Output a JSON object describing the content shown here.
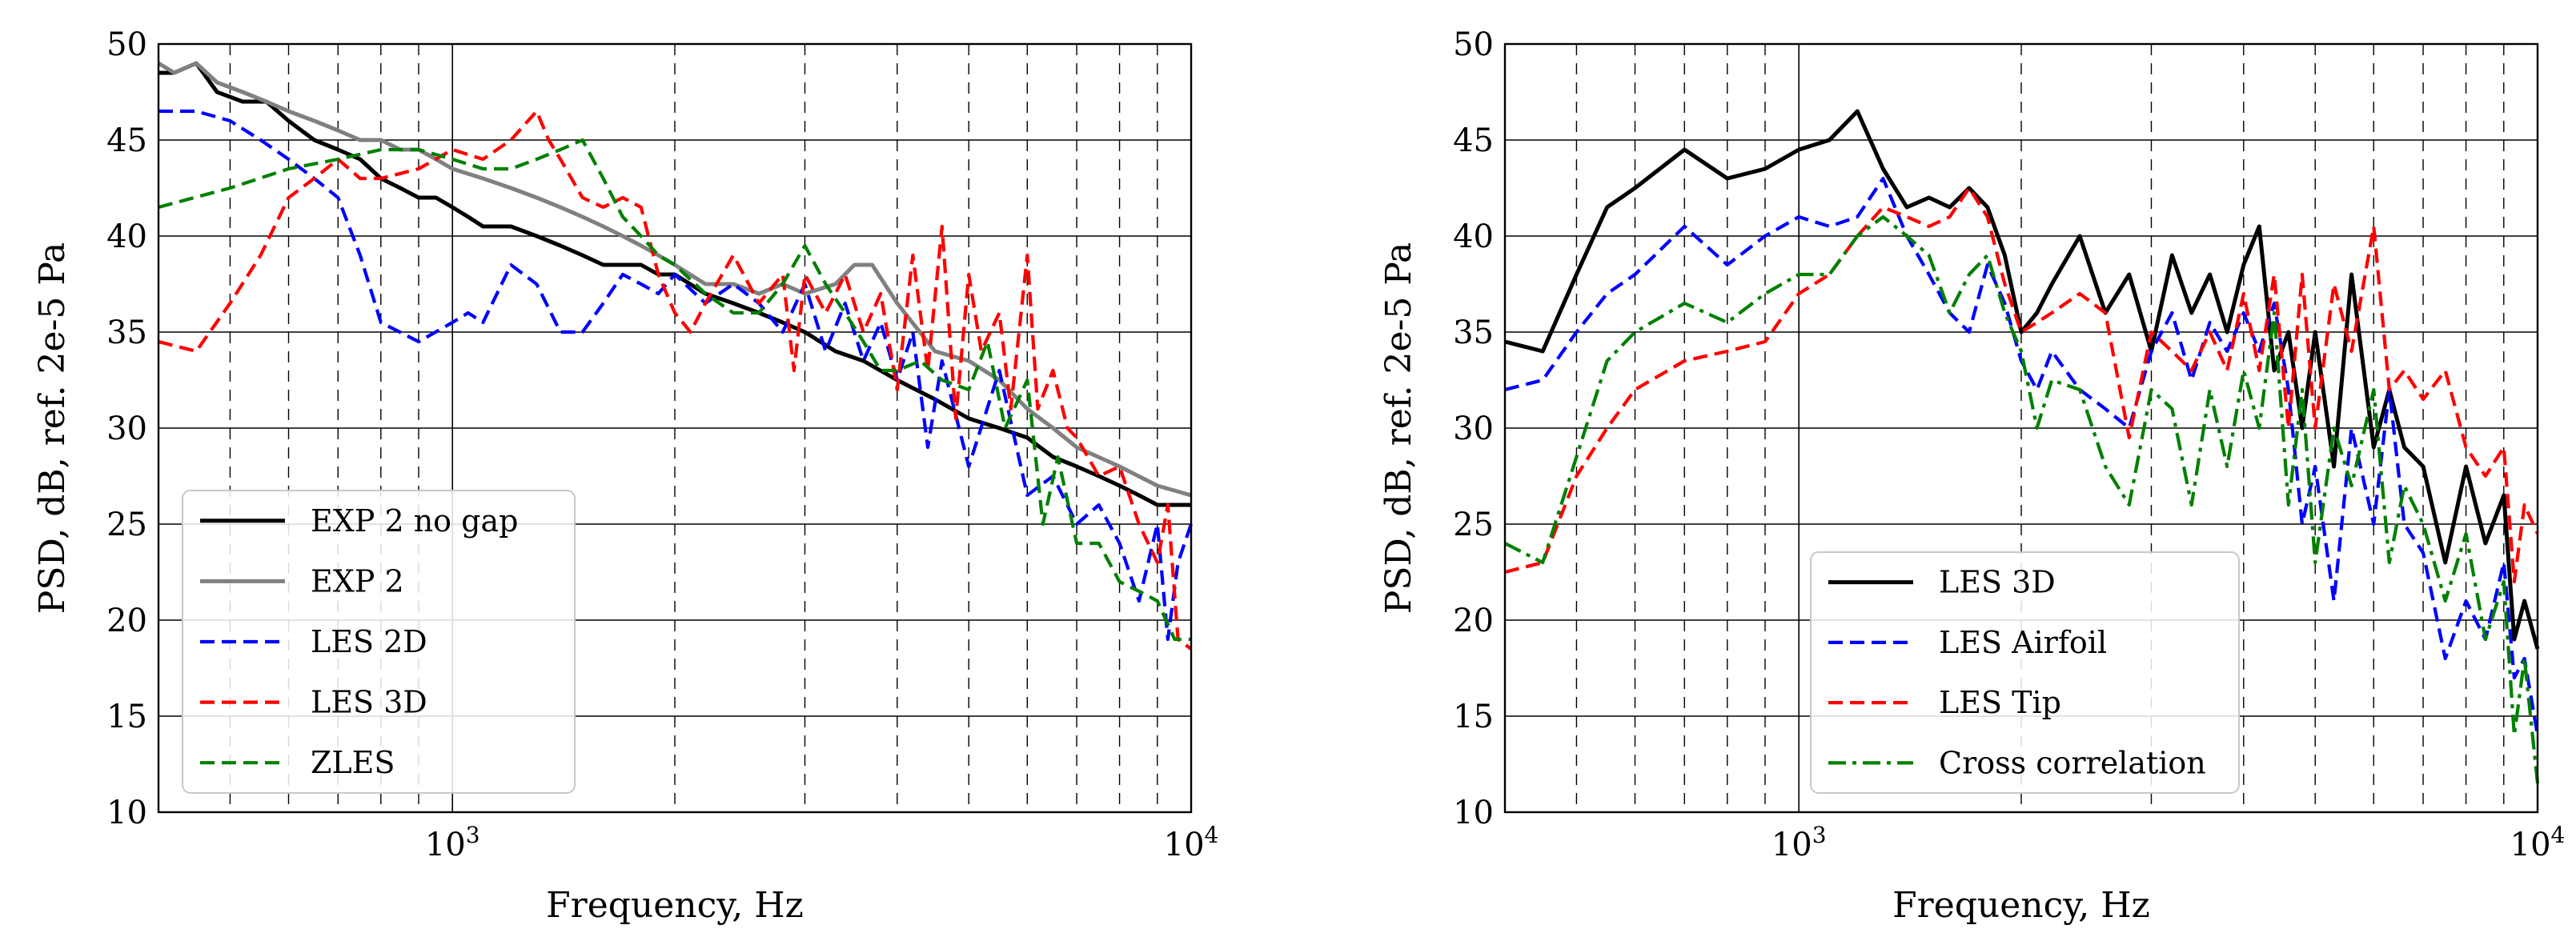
{
  "chart_data": [
    {
      "type": "line",
      "xlabel": "Frequency, Hz",
      "ylabel": "PSD, dB, ref. 2e-5 Pa",
      "xscale": "log",
      "xlim": [
        400,
        10000
      ],
      "ylim": [
        10,
        50
      ],
      "yticks": [
        10,
        15,
        20,
        25,
        30,
        35,
        40,
        45,
        50
      ],
      "xtick_labels": [
        {
          "value": 1000,
          "base": "10",
          "exp": "3"
        },
        {
          "value": 10000,
          "base": "10",
          "exp": "4"
        }
      ],
      "grid": true,
      "legend_position": "lower-left",
      "series": [
        {
          "name": "EXP 2 no gap",
          "color": "#000000",
          "style": "solid",
          "x": [
            400,
            420,
            450,
            480,
            520,
            560,
            600,
            650,
            700,
            750,
            800,
            850,
            900,
            950,
            1000,
            1050,
            1100,
            1200,
            1300,
            1400,
            1500,
            1600,
            1700,
            1800,
            1900,
            2000,
            2200,
            2400,
            2600,
            2800,
            3000,
            3300,
            3600,
            4000,
            4500,
            5000,
            5500,
            6000,
            6500,
            7000,
            7500,
            8000,
            8500,
            9000,
            9500,
            10000
          ],
          "y": [
            48.5,
            48.5,
            49.0,
            47.5,
            47.0,
            47.0,
            46.0,
            45.0,
            44.5,
            44.0,
            43.0,
            42.5,
            42.0,
            42.0,
            41.5,
            41.0,
            40.5,
            40.5,
            40.0,
            39.5,
            39.0,
            38.5,
            38.5,
            38.5,
            38.0,
            38.0,
            37.0,
            36.5,
            36.0,
            35.5,
            35.0,
            34.0,
            33.5,
            32.5,
            31.5,
            30.5,
            30.0,
            29.5,
            28.5,
            28.0,
            27.5,
            27.0,
            26.5,
            26.0,
            26.0,
            26.0
          ]
        },
        {
          "name": "EXP 2",
          "color": "#808080",
          "style": "solid",
          "x": [
            400,
            420,
            450,
            480,
            520,
            560,
            600,
            650,
            700,
            750,
            800,
            850,
            900,
            950,
            1000,
            1100,
            1200,
            1300,
            1400,
            1500,
            1600,
            1700,
            1800,
            1900,
            2000,
            2200,
            2400,
            2600,
            2800,
            3000,
            3300,
            3500,
            3700,
            4000,
            4500,
            5000,
            5500,
            6000,
            6500,
            7000,
            8000,
            9000,
            10000
          ],
          "y": [
            49.0,
            48.5,
            49.0,
            48.0,
            47.5,
            47.0,
            46.5,
            46.0,
            45.5,
            45.0,
            45.0,
            44.5,
            44.5,
            44.0,
            43.5,
            43.0,
            42.5,
            42.0,
            41.5,
            41.0,
            40.5,
            40.0,
            39.5,
            39.0,
            38.5,
            37.5,
            37.5,
            37.0,
            37.5,
            37.0,
            37.5,
            38.5,
            38.5,
            36.5,
            34.0,
            33.5,
            32.5,
            31.0,
            30.0,
            29.0,
            28.0,
            27.0,
            26.5
          ]
        },
        {
          "name": "LES 2D",
          "color": "#0000ff",
          "style": "dashed",
          "x": [
            400,
            450,
            500,
            550,
            600,
            650,
            700,
            750,
            800,
            900,
            1000,
            1050,
            1100,
            1200,
            1300,
            1400,
            1500,
            1600,
            1700,
            1800,
            1900,
            2000,
            2200,
            2400,
            2600,
            2800,
            3000,
            3200,
            3400,
            3600,
            3800,
            4000,
            4200,
            4400,
            4600,
            5000,
            5500,
            6000,
            6500,
            7000,
            7500,
            8000,
            8500,
            9000,
            9300,
            9600,
            10000
          ],
          "y": [
            46.5,
            46.5,
            46.0,
            45.0,
            44.0,
            43.0,
            42.0,
            39.0,
            35.5,
            34.5,
            35.5,
            36.0,
            35.5,
            38.5,
            37.5,
            35.0,
            35.0,
            36.5,
            38.0,
            37.5,
            37.0,
            38.0,
            36.5,
            37.5,
            36.5,
            35.0,
            37.5,
            34.0,
            36.5,
            33.5,
            35.5,
            32.5,
            35.0,
            29.0,
            33.5,
            28.0,
            33.0,
            26.5,
            27.5,
            25.0,
            26.0,
            24.0,
            21.0,
            25.0,
            19.0,
            23.0,
            25.0
          ]
        },
        {
          "name": "LES 3D",
          "color": "#ff0000",
          "style": "dashed",
          "x": [
            400,
            450,
            500,
            550,
            600,
            650,
            700,
            750,
            800,
            900,
            1000,
            1100,
            1200,
            1300,
            1350,
            1400,
            1500,
            1600,
            1700,
            1800,
            1900,
            2000,
            2100,
            2200,
            2400,
            2600,
            2800,
            2900,
            3000,
            3200,
            3400,
            3600,
            3800,
            4000,
            4200,
            4400,
            4600,
            4800,
            5000,
            5200,
            5500,
            5700,
            6000,
            6200,
            6500,
            6800,
            7000,
            7500,
            8000,
            8500,
            9000,
            9300,
            9600,
            10000
          ],
          "y": [
            34.5,
            34.0,
            36.5,
            39.0,
            42.0,
            43.0,
            44.0,
            43.0,
            43.0,
            43.5,
            44.5,
            44.0,
            45.0,
            46.5,
            45.0,
            44.0,
            42.0,
            41.5,
            42.0,
            41.5,
            38.0,
            36.0,
            35.0,
            36.5,
            39.0,
            36.5,
            38.0,
            33.0,
            38.0,
            36.0,
            38.0,
            35.0,
            37.0,
            32.0,
            39.0,
            33.0,
            40.5,
            30.5,
            38.0,
            34.0,
            36.0,
            31.0,
            39.0,
            31.0,
            33.0,
            30.0,
            29.5,
            27.5,
            28.0,
            25.0,
            23.0,
            26.0,
            19.0,
            18.5
          ]
        },
        {
          "name": "ZLES",
          "color": "#008000",
          "style": "dashed",
          "x": [
            400,
            500,
            600,
            700,
            800,
            900,
            1000,
            1100,
            1200,
            1300,
            1400,
            1500,
            1600,
            1700,
            1800,
            1900,
            2000,
            2200,
            2400,
            2600,
            2800,
            3000,
            3200,
            3400,
            3600,
            3800,
            4000,
            4300,
            4600,
            5000,
            5300,
            5600,
            6000,
            6300,
            6600,
            7000,
            7500,
            8000,
            8500,
            9000,
            9500,
            10000
          ],
          "y": [
            41.5,
            42.5,
            43.5,
            44.0,
            44.5,
            44.5,
            44.0,
            43.5,
            43.5,
            44.0,
            44.5,
            45.0,
            43.0,
            41.0,
            40.0,
            39.0,
            38.5,
            37.0,
            36.0,
            36.0,
            37.5,
            39.5,
            37.5,
            36.0,
            34.5,
            33.0,
            33.0,
            33.5,
            32.5,
            32.0,
            34.5,
            30.0,
            32.5,
            25.0,
            28.5,
            24.0,
            24.0,
            22.0,
            21.5,
            21.0,
            19.0,
            19.0
          ]
        }
      ]
    },
    {
      "type": "line",
      "xlabel": "Frequency, Hz",
      "ylabel": "PSD, dB, ref. 2e-5 Pa",
      "xscale": "log",
      "xlim": [
        400,
        10000
      ],
      "ylim": [
        10,
        50
      ],
      "yticks": [
        10,
        15,
        20,
        25,
        30,
        35,
        40,
        45,
        50
      ],
      "xtick_labels": [
        {
          "value": 1000,
          "base": "10",
          "exp": "3"
        },
        {
          "value": 10000,
          "base": "10",
          "exp": "4"
        }
      ],
      "grid": true,
      "legend_position": "lower-right",
      "series": [
        {
          "name": "LES 3D",
          "color": "#000000",
          "style": "solid",
          "x": [
            400,
            450,
            500,
            550,
            600,
            700,
            800,
            900,
            1000,
            1100,
            1200,
            1300,
            1400,
            1500,
            1600,
            1700,
            1800,
            1900,
            2000,
            2100,
            2200,
            2400,
            2600,
            2800,
            3000,
            3200,
            3400,
            3600,
            3800,
            4000,
            4200,
            4400,
            4600,
            4800,
            5000,
            5300,
            5600,
            6000,
            6300,
            6600,
            7000,
            7500,
            8000,
            8500,
            9000,
            9300,
            9600,
            10000
          ],
          "y": [
            34.5,
            34.0,
            38.0,
            41.5,
            42.5,
            44.5,
            43.0,
            43.5,
            44.5,
            45.0,
            46.5,
            43.5,
            41.5,
            42.0,
            41.5,
            42.5,
            41.5,
            39.0,
            35.0,
            36.0,
            37.5,
            40.0,
            36.0,
            38.0,
            34.0,
            39.0,
            36.0,
            38.0,
            35.0,
            38.5,
            40.5,
            33.0,
            35.0,
            30.0,
            35.0,
            28.0,
            38.0,
            29.0,
            32.0,
            29.0,
            28.0,
            23.0,
            28.0,
            24.0,
            26.5,
            19.0,
            21.0,
            18.5
          ]
        },
        {
          "name": "LES Airfoil",
          "color": "#0000ff",
          "style": "dashed",
          "x": [
            400,
            450,
            500,
            550,
            600,
            700,
            800,
            900,
            1000,
            1100,
            1200,
            1300,
            1400,
            1500,
            1600,
            1700,
            1800,
            1900,
            2000,
            2100,
            2200,
            2400,
            2600,
            2800,
            3000,
            3200,
            3400,
            3600,
            3800,
            4000,
            4200,
            4400,
            4600,
            4800,
            5000,
            5300,
            5600,
            6000,
            6300,
            6600,
            7000,
            7500,
            8000,
            8500,
            9000,
            9300,
            9600,
            10000
          ],
          "y": [
            32.0,
            32.5,
            35.0,
            37.0,
            38.0,
            40.5,
            38.5,
            40.0,
            41.0,
            40.5,
            41.0,
            43.0,
            40.0,
            38.0,
            36.0,
            35.0,
            38.5,
            36.5,
            33.5,
            32.0,
            34.0,
            32.0,
            31.0,
            30.0,
            34.0,
            36.0,
            32.5,
            35.5,
            34.0,
            36.0,
            34.0,
            36.5,
            32.0,
            25.0,
            28.0,
            21.0,
            30.0,
            25.0,
            32.0,
            25.0,
            23.5,
            18.0,
            21.0,
            19.0,
            23.0,
            17.0,
            18.0,
            14.0
          ]
        },
        {
          "name": "LES Tip",
          "color": "#ff0000",
          "style": "dashed",
          "x": [
            400,
            450,
            500,
            550,
            600,
            700,
            800,
            900,
            1000,
            1100,
            1200,
            1300,
            1400,
            1500,
            1600,
            1700,
            1800,
            1900,
            2000,
            2100,
            2200,
            2400,
            2600,
            2800,
            3000,
            3200,
            3400,
            3600,
            3800,
            4000,
            4200,
            4400,
            4600,
            4800,
            5000,
            5300,
            5600,
            6000,
            6300,
            6600,
            7000,
            7500,
            8000,
            8500,
            9000,
            9300,
            9600,
            10000
          ],
          "y": [
            22.5,
            23.0,
            27.5,
            30.0,
            32.0,
            33.5,
            34.0,
            34.5,
            37.0,
            38.0,
            40.0,
            41.5,
            41.0,
            40.5,
            41.0,
            42.5,
            41.0,
            37.5,
            35.0,
            35.5,
            36.0,
            37.0,
            36.0,
            29.5,
            35.0,
            34.0,
            33.0,
            35.0,
            33.0,
            37.0,
            33.0,
            38.0,
            30.0,
            38.0,
            30.0,
            37.5,
            34.0,
            40.5,
            32.0,
            33.0,
            31.5,
            33.0,
            29.0,
            27.5,
            29.0,
            22.0,
            26.0,
            24.5
          ]
        },
        {
          "name": "Cross correlation",
          "color": "#008000",
          "style": "dashdot",
          "x": [
            400,
            450,
            500,
            550,
            600,
            700,
            800,
            900,
            1000,
            1100,
            1200,
            1300,
            1400,
            1500,
            1600,
            1700,
            1800,
            1900,
            2000,
            2100,
            2200,
            2400,
            2600,
            2800,
            3000,
            3200,
            3400,
            3600,
            3800,
            4000,
            4200,
            4400,
            4600,
            4800,
            5000,
            5300,
            5600,
            6000,
            6300,
            6600,
            7000,
            7500,
            8000,
            8500,
            9000,
            9300,
            9600,
            10000
          ],
          "y": [
            24.0,
            23.0,
            28.5,
            33.5,
            35.0,
            36.5,
            35.5,
            37.0,
            38.0,
            38.0,
            40.0,
            41.0,
            40.0,
            39.0,
            36.0,
            38.0,
            39.0,
            36.0,
            34.0,
            30.0,
            32.5,
            32.0,
            28.0,
            26.0,
            32.0,
            31.0,
            26.0,
            32.0,
            28.0,
            33.0,
            30.0,
            36.0,
            26.0,
            32.0,
            23.0,
            30.0,
            27.0,
            32.0,
            23.0,
            27.0,
            25.0,
            21.0,
            24.5,
            19.0,
            22.0,
            14.0,
            18.0,
            11.5
          ]
        }
      ]
    }
  ]
}
